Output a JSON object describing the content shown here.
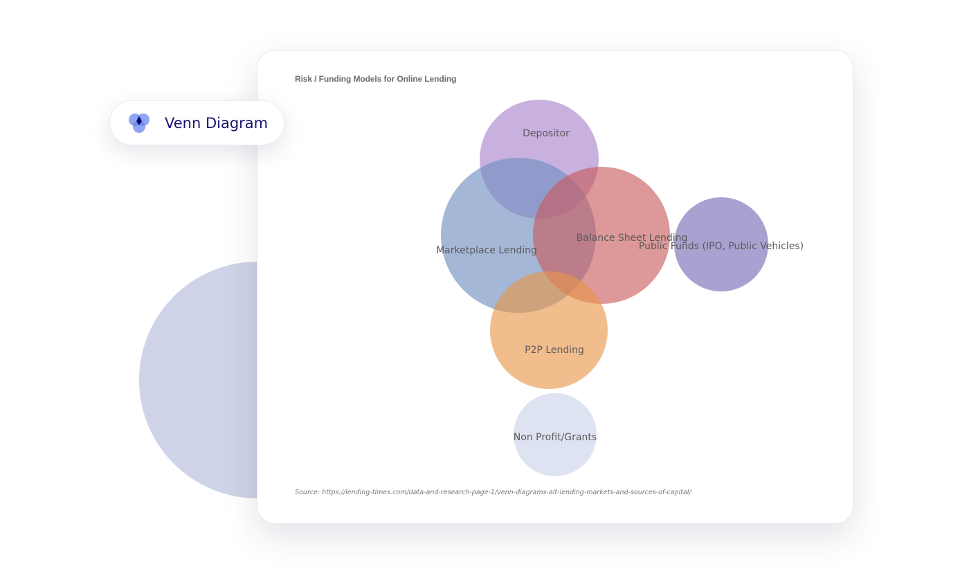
{
  "badge": {
    "label": "Venn Diagram",
    "icon": "venn-diagram-icon"
  },
  "diagram": {
    "title": "Risk / Funding Models for Online Lending",
    "source": "Source: https://lending-times.com/data-and-research-page-1/venn-diagrams-alt-lending-markets-and-sources-of-capital/",
    "sets": [
      {
        "id": "depositor",
        "label": "Depositor",
        "color": "#9b6fc4"
      },
      {
        "id": "marketplace",
        "label": "Marketplace Lending",
        "color": "#7390c0"
      },
      {
        "id": "balance-sheet",
        "label": "Balance Sheet Lending",
        "color": "#c8585a"
      },
      {
        "id": "public-funds",
        "label": "Public Funds (IPO, Public Vehicles)",
        "color": "#7667b4"
      },
      {
        "id": "p2p",
        "label": "P2P Lending",
        "color": "#e89447"
      },
      {
        "id": "non-profit",
        "label": "Non Profit/Grants",
        "color": "#c3cce8"
      }
    ]
  },
  "colors": {
    "badge_text": "#1a1470",
    "deco_circle": "#cfd3e7"
  }
}
